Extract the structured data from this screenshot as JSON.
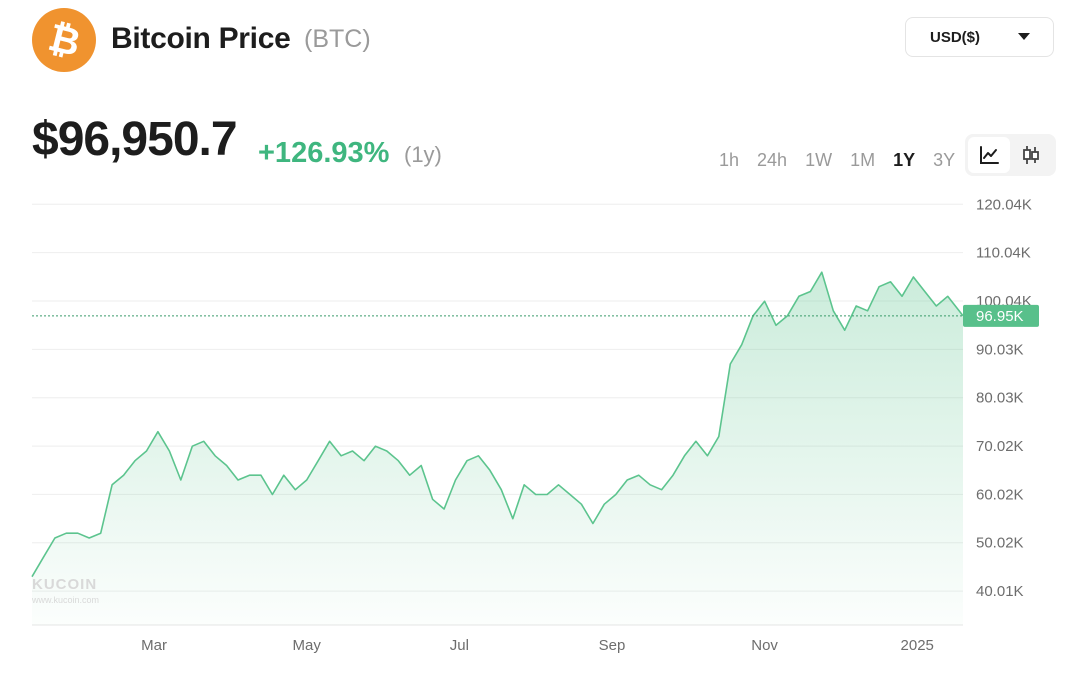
{
  "header": {
    "logo_symbol": "₿",
    "logo_icon": "bitcoin-icon",
    "title": "Bitcoin Price",
    "ticker": "(BTC)",
    "currency": "USD($)"
  },
  "price": {
    "value": "$96,950.7",
    "change": "+126.93%",
    "period": "(1y)"
  },
  "ranges": [
    "1h",
    "24h",
    "1W",
    "1M",
    "1Y",
    "3Y"
  ],
  "active_range": "1Y",
  "view_toggles": [
    {
      "icon": "line-chart-icon",
      "active": true
    },
    {
      "icon": "candlestick-icon",
      "active": false
    }
  ],
  "watermark": {
    "name": "KUCOIN",
    "url": "www.kucoin.com"
  },
  "colors": {
    "accent": "#3fb67f",
    "line": "#5cc48e",
    "logo": "#f0932f",
    "grid": "#eeeeee",
    "current_label_bg": "#58c08b"
  },
  "chart_data": {
    "type": "area",
    "x_tick_labels": [
      "Mar",
      "May",
      "Jul",
      "Sep",
      "Nov",
      "2025"
    ],
    "y_tick_labels": [
      "120.04K",
      "110.04K",
      "100.04K",
      "90.03K",
      "80.03K",
      "70.02K",
      "60.02K",
      "50.02K",
      "40.01K"
    ],
    "y_ticks": [
      120.04,
      110.04,
      100.04,
      90.03,
      80.03,
      70.02,
      60.02,
      50.02,
      40.01
    ],
    "y_unit": "K USD",
    "ylim": [
      33,
      123
    ],
    "x_range_months": [
      1.4,
      13.6
    ],
    "x_tick_positions_months": [
      3,
      5,
      7,
      9,
      11,
      13
    ],
    "current_value": 96.95,
    "current_label": "96.95K",
    "grid": true,
    "series": [
      {
        "x_months": [
          1.4,
          1.55,
          1.7,
          1.85,
          2.0,
          2.15,
          2.3,
          2.45,
          2.6,
          2.75,
          2.9,
          3.05,
          3.2,
          3.35,
          3.5,
          3.65,
          3.8,
          3.95,
          4.1,
          4.25,
          4.4,
          4.55,
          4.7,
          4.85,
          5.0,
          5.15,
          5.3,
          5.45,
          5.6,
          5.75,
          5.9,
          6.05,
          6.2,
          6.35,
          6.5,
          6.65,
          6.8,
          6.95,
          7.1,
          7.25,
          7.4,
          7.55,
          7.7,
          7.85,
          8.0,
          8.15,
          8.3,
          8.45,
          8.6,
          8.75,
          8.9,
          9.05,
          9.2,
          9.35,
          9.5,
          9.65,
          9.8,
          9.95,
          10.1,
          10.25,
          10.4,
          10.55,
          10.7,
          10.85,
          11.0,
          11.15,
          11.3,
          11.45,
          11.6,
          11.75,
          11.9,
          12.05,
          12.2,
          12.35,
          12.5,
          12.65,
          12.8,
          12.95,
          13.1,
          13.25,
          13.4,
          13.6
        ],
        "values": [
          43,
          47,
          51,
          52,
          52,
          51,
          52,
          62,
          64,
          67,
          69,
          73,
          69,
          63,
          70,
          71,
          68,
          66,
          63,
          64,
          64,
          60,
          64,
          61,
          63,
          67,
          71,
          68,
          69,
          67,
          70,
          69,
          67,
          64,
          66,
          59,
          57,
          63,
          67,
          68,
          65,
          61,
          55,
          62,
          60,
          60,
          62,
          60,
          58,
          54,
          58,
          60,
          63,
          64,
          62,
          61,
          64,
          68,
          71,
          68,
          72,
          87,
          91,
          97,
          100,
          95,
          97,
          101,
          102,
          106,
          98,
          94,
          99,
          98,
          103,
          104,
          101,
          105,
          102,
          99,
          101,
          97
        ]
      }
    ]
  }
}
